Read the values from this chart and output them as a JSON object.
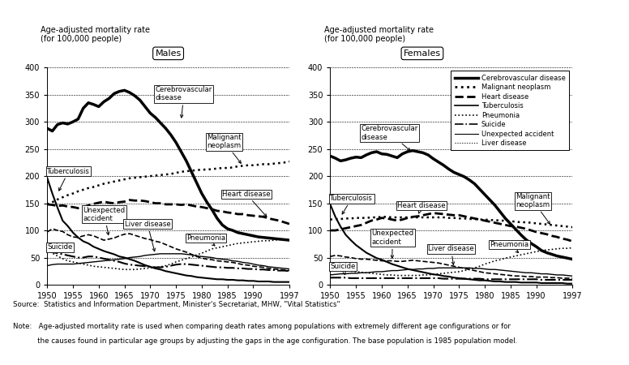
{
  "years": [
    1950,
    1951,
    1952,
    1953,
    1954,
    1955,
    1956,
    1957,
    1958,
    1959,
    1960,
    1961,
    1962,
    1963,
    1964,
    1965,
    1966,
    1967,
    1968,
    1969,
    1970,
    1971,
    1972,
    1973,
    1974,
    1975,
    1976,
    1977,
    1978,
    1979,
    1980,
    1981,
    1982,
    1983,
    1984,
    1985,
    1986,
    1987,
    1988,
    1989,
    1990,
    1991,
    1992,
    1993,
    1994,
    1995,
    1996,
    1997
  ],
  "males": {
    "cerebrovascular": [
      288,
      283,
      295,
      298,
      296,
      300,
      305,
      325,
      335,
      332,
      328,
      337,
      343,
      352,
      356,
      358,
      354,
      348,
      340,
      328,
      316,
      308,
      298,
      288,
      276,
      262,
      245,
      228,
      208,
      188,
      168,
      152,
      138,
      122,
      110,
      103,
      100,
      96,
      94,
      92,
      90,
      88,
      87,
      86,
      85,
      84,
      83,
      82
    ],
    "malignant_neoplasm": [
      148,
      152,
      157,
      161,
      165,
      168,
      172,
      175,
      178,
      180,
      183,
      186,
      188,
      190,
      192,
      194,
      196,
      197,
      198,
      199,
      200,
      201,
      202,
      203,
      204,
      206,
      208,
      209,
      210,
      211,
      212,
      212,
      213,
      214,
      215,
      215,
      216,
      218,
      219,
      220,
      220,
      221,
      222,
      222,
      223,
      224,
      225,
      227
    ],
    "heart_disease": [
      148,
      147,
      145,
      146,
      144,
      143,
      141,
      143,
      146,
      149,
      151,
      153,
      151,
      150,
      152,
      153,
      156,
      155,
      155,
      154,
      152,
      150,
      150,
      148,
      148,
      148,
      147,
      148,
      146,
      144,
      143,
      141,
      139,
      136,
      135,
      133,
      132,
      130,
      130,
      128,
      127,
      126,
      125,
      122,
      120,
      118,
      115,
      112
    ],
    "tuberculosis": [
      197,
      168,
      142,
      118,
      108,
      96,
      87,
      80,
      76,
      70,
      66,
      62,
      59,
      56,
      52,
      50,
      47,
      44,
      40,
      36,
      33,
      30,
      28,
      25,
      23,
      21,
      19,
      17,
      16,
      14,
      13,
      12,
      11,
      10,
      10,
      9,
      9,
      8,
      8,
      7,
      7,
      6,
      6,
      6,
      5,
      5,
      5,
      5
    ],
    "unexpected_accident": [
      97,
      103,
      100,
      98,
      92,
      88,
      87,
      90,
      92,
      90,
      86,
      82,
      84,
      86,
      90,
      93,
      94,
      91,
      88,
      85,
      83,
      80,
      78,
      74,
      70,
      66,
      63,
      60,
      56,
      52,
      49,
      47,
      46,
      44,
      43,
      42,
      41,
      39,
      37,
      36,
      34,
      33,
      32,
      30,
      29,
      28,
      27,
      26
    ],
    "liver_disease": [
      35,
      37,
      38,
      38,
      38,
      38,
      39,
      40,
      41,
      42,
      43,
      44,
      45,
      46,
      47,
      48,
      50,
      51,
      52,
      54,
      55,
      56,
      57,
      57,
      57,
      57,
      57,
      56,
      55,
      53,
      52,
      51,
      50,
      48,
      47,
      46,
      44,
      43,
      41,
      40,
      38,
      36,
      35,
      33,
      32,
      31,
      30,
      29
    ],
    "pneumonia": [
      65,
      58,
      53,
      48,
      44,
      42,
      40,
      38,
      36,
      34,
      33,
      32,
      31,
      30,
      29,
      28,
      28,
      28,
      29,
      30,
      31,
      32,
      33,
      35,
      38,
      42,
      45,
      48,
      51,
      55,
      58,
      62,
      66,
      68,
      70,
      72,
      74,
      76,
      77,
      78,
      79,
      80,
      81,
      81,
      82,
      83,
      83,
      84
    ],
    "suicide": [
      62,
      60,
      58,
      56,
      54,
      52,
      50,
      50,
      52,
      52,
      50,
      48,
      46,
      44,
      42,
      39,
      37,
      36,
      35,
      34,
      33,
      32,
      32,
      33,
      35,
      37,
      38,
      38,
      37,
      36,
      35,
      34,
      33,
      32,
      32,
      31,
      31,
      30,
      30,
      29,
      29,
      28,
      28,
      27,
      27,
      26,
      26,
      25
    ]
  },
  "females": {
    "cerebrovascular": [
      237,
      233,
      228,
      230,
      233,
      235,
      234,
      239,
      243,
      245,
      241,
      240,
      237,
      234,
      241,
      245,
      247,
      245,
      243,
      239,
      232,
      226,
      220,
      213,
      207,
      203,
      199,
      193,
      186,
      176,
      166,
      156,
      146,
      134,
      122,
      112,
      102,
      92,
      83,
      76,
      70,
      63,
      59,
      56,
      53,
      51,
      49,
      47
    ],
    "malignant_neoplasm": [
      120,
      121,
      121,
      122,
      122,
      123,
      123,
      123,
      124,
      124,
      125,
      125,
      124,
      124,
      124,
      124,
      124,
      124,
      124,
      124,
      124,
      124,
      124,
      123,
      123,
      122,
      122,
      121,
      121,
      120,
      120,
      119,
      119,
      118,
      118,
      117,
      116,
      115,
      115,
      114,
      113,
      112,
      111,
      110,
      109,
      108,
      107,
      106
    ],
    "heart_disease": [
      100,
      100,
      102,
      104,
      106,
      108,
      110,
      114,
      118,
      120,
      123,
      122,
      120,
      118,
      120,
      123,
      125,
      126,
      128,
      130,
      132,
      131,
      130,
      129,
      128,
      128,
      126,
      124,
      122,
      120,
      118,
      116,
      114,
      112,
      110,
      108,
      107,
      105,
      103,
      100,
      97,
      95,
      93,
      90,
      88,
      85,
      83,
      80
    ],
    "tuberculosis": [
      148,
      125,
      107,
      92,
      82,
      73,
      66,
      59,
      54,
      49,
      46,
      42,
      38,
      35,
      32,
      29,
      27,
      25,
      23,
      21,
      19,
      18,
      16,
      15,
      13,
      12,
      11,
      10,
      9,
      8,
      8,
      7,
      6,
      6,
      5,
      5,
      5,
      4,
      4,
      4,
      4,
      3,
      3,
      3,
      3,
      3,
      2,
      2
    ],
    "unexpected_accident": [
      52,
      54,
      53,
      51,
      50,
      48,
      47,
      47,
      46,
      45,
      44,
      44,
      44,
      43,
      43,
      44,
      45,
      44,
      43,
      42,
      41,
      40,
      38,
      36,
      34,
      32,
      30,
      28,
      26,
      24,
      22,
      21,
      20,
      19,
      18,
      17,
      16,
      16,
      15,
      15,
      14,
      14,
      14,
      13,
      13,
      12,
      12,
      12
    ],
    "liver_disease": [
      18,
      19,
      20,
      20,
      21,
      21,
      22,
      22,
      23,
      24,
      24,
      25,
      26,
      26,
      27,
      28,
      28,
      29,
      29,
      30,
      30,
      31,
      31,
      31,
      31,
      31,
      31,
      31,
      30,
      30,
      29,
      28,
      28,
      27,
      26,
      25,
      24,
      23,
      22,
      22,
      21,
      20,
      20,
      19,
      18,
      18,
      17,
      16
    ],
    "pneumonia": [
      35,
      32,
      29,
      27,
      25,
      24,
      23,
      22,
      21,
      20,
      19,
      18,
      18,
      17,
      17,
      17,
      17,
      17,
      18,
      18,
      19,
      20,
      21,
      22,
      23,
      24,
      26,
      28,
      31,
      34,
      38,
      41,
      44,
      46,
      49,
      51,
      53,
      55,
      57,
      59,
      61,
      63,
      64,
      65,
      66,
      67,
      67,
      68
    ],
    "suicide": [
      13,
      13,
      13,
      13,
      12,
      12,
      12,
      12,
      12,
      12,
      12,
      12,
      12,
      12,
      12,
      12,
      12,
      12,
      12,
      12,
      12,
      12,
      11,
      11,
      11,
      11,
      11,
      11,
      11,
      11,
      10,
      10,
      10,
      10,
      10,
      10,
      10,
      10,
      10,
      10,
      10,
      9,
      9,
      9,
      9,
      9,
      9,
      9
    ]
  },
  "title": "Age-adjusted mortality rate\n(for 100,000 people)",
  "label_males": "Males",
  "label_females": "Females",
  "xlim": [
    1950,
    1997
  ],
  "ylim": [
    0,
    400
  ],
  "yticks": [
    0,
    50,
    100,
    150,
    200,
    250,
    300,
    350,
    400
  ],
  "xticks": [
    1950,
    1955,
    1960,
    1965,
    1970,
    1975,
    1980,
    1985,
    1990,
    1997
  ],
  "source_text": "Source:  Statistics and Information Department, Minister's Secretariat, MHW, \"Vital Statistics\"",
  "note_text1": "Note:   Age-adjusted mortality rate is used when comparing death rates among populations with extremely different age configurations or for",
  "note_text2": "           the causes found in particular age groups by adjusting the gaps in the age configuration. The base population is 1985 population model.",
  "legend_entries": [
    [
      "Cerebrovascular disease",
      "-",
      2.5
    ],
    [
      "Malignant neoplasm",
      ":",
      2.0
    ],
    [
      "Heart disease",
      "--",
      2.0
    ],
    [
      "Tuberculosis",
      "-",
      1.2
    ],
    [
      "Pneumonia",
      ":",
      1.2
    ],
    [
      "Suicide",
      "-.",
      1.2
    ],
    [
      "Unexpected accident",
      "-",
      0.8
    ],
    [
      "Liver disease",
      ":",
      0.8
    ]
  ],
  "line_styles": {
    "cerebrovascular": {
      "lw": 2.5,
      "ls": "-",
      "color": "#000000"
    },
    "malignant_neoplasm": {
      "lw": 1.8,
      "ls": ":",
      "color": "#000000"
    },
    "heart_disease": {
      "lw": 2.0,
      "ls": "--",
      "color": "#000000"
    },
    "tuberculosis": {
      "lw": 1.5,
      "ls": "-",
      "color": "#000000"
    },
    "unexpected_accident": {
      "lw": 1.2,
      "ls": "--",
      "color": "#000000"
    },
    "liver_disease": {
      "lw": 1.0,
      "ls": "-",
      "color": "#000000"
    },
    "pneumonia": {
      "lw": 1.2,
      "ls": ":",
      "color": "#000000"
    },
    "suicide": {
      "lw": 1.5,
      "ls": "-.",
      "color": "#000000"
    }
  }
}
